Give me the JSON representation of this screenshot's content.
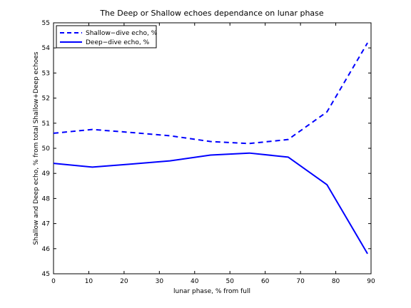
{
  "chart_data": {
    "type": "line",
    "title": "The Deep or Shallow echoes dependance on lunar phase",
    "xlabel": "lunar phase, % from full",
    "ylabel": "Shallow and Deep echo, % from total Shallow+Deep echoes",
    "xlim": [
      0,
      90
    ],
    "ylim": [
      45,
      55
    ],
    "xticks": [
      0,
      10,
      20,
      30,
      40,
      50,
      60,
      70,
      80,
      90
    ],
    "yticks": [
      45,
      46,
      47,
      48,
      49,
      50,
      51,
      52,
      53,
      54,
      55
    ],
    "grid": false,
    "legend_position": "top-left",
    "x": [
      0,
      11,
      22,
      33,
      44.5,
      55.5,
      66.5,
      77.5,
      89
    ],
    "series": [
      {
        "name": "Shallow−dive echo, %",
        "style": "dashed",
        "color": "#0000ff",
        "values": [
          50.6,
          50.75,
          50.63,
          50.5,
          50.27,
          50.19,
          50.35,
          51.45,
          54.2
        ]
      },
      {
        "name": "Deep−dive echo, %",
        "style": "solid",
        "color": "#0000ff",
        "values": [
          49.4,
          49.25,
          49.37,
          49.5,
          49.73,
          49.81,
          49.65,
          48.55,
          45.8
        ]
      }
    ]
  }
}
